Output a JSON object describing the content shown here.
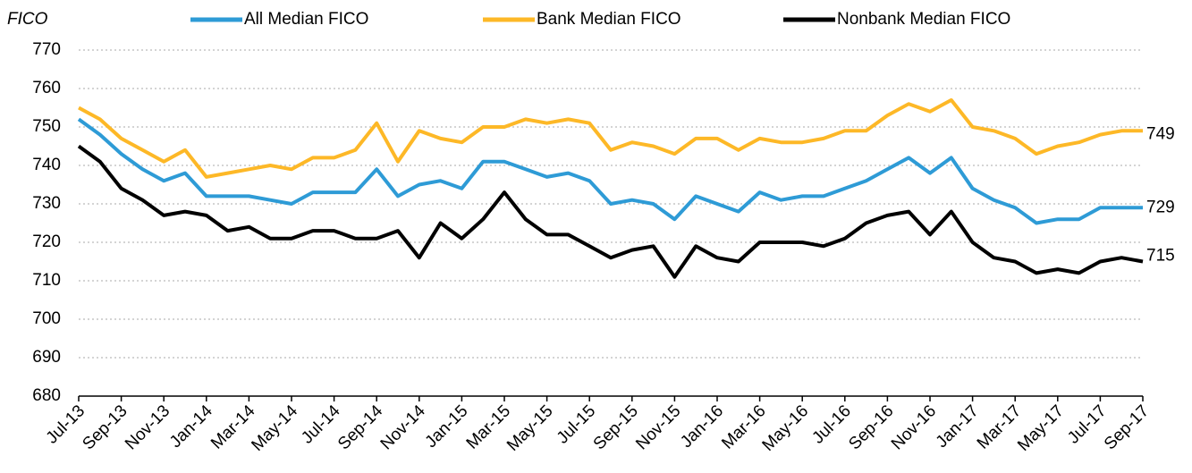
{
  "chart_data": {
    "type": "line",
    "y_label": "FICO",
    "categories": [
      "Jul-13",
      null,
      "Sep-13",
      null,
      "Nov-13",
      null,
      "Jan-14",
      null,
      "Mar-14",
      null,
      "May-14",
      null,
      "Jul-14",
      null,
      "Sep-14",
      null,
      "Nov-14",
      null,
      "Jan-15",
      null,
      "Mar-15",
      null,
      "May-15",
      null,
      "Jul-15",
      null,
      "Sep-15",
      null,
      "Nov-15",
      null,
      "Jan-16",
      null,
      "Mar-16",
      null,
      "May-16",
      null,
      "Jul-16",
      null,
      "Sep-16",
      null,
      "Nov-16",
      null,
      "Jan-17",
      null,
      "Mar-17",
      null,
      "May-17",
      null,
      "Jul-17",
      null,
      "Sep-17"
    ],
    "series": [
      {
        "name": "All Median FICO",
        "color": "#2e9bd6",
        "values": [
          752,
          748,
          743,
          739,
          736,
          738,
          732,
          732,
          732,
          731,
          730,
          733,
          733,
          733,
          739,
          732,
          735,
          736,
          734,
          741,
          741,
          739,
          737,
          738,
          736,
          730,
          731,
          730,
          726,
          732,
          730,
          728,
          733,
          731,
          732,
          732,
          734,
          736,
          739,
          742,
          738,
          742,
          734,
          731,
          729,
          725,
          726,
          726,
          729,
          729,
          729
        ]
      },
      {
        "name": "Bank Median FICO",
        "color": "#fdb827",
        "values": [
          755,
          752,
          747,
          744,
          741,
          744,
          737,
          738,
          739,
          740,
          739,
          742,
          742,
          744,
          751,
          741,
          749,
          747,
          746,
          750,
          750,
          752,
          751,
          752,
          751,
          744,
          746,
          745,
          743,
          747,
          747,
          744,
          747,
          746,
          746,
          747,
          749,
          749,
          753,
          756,
          754,
          757,
          750,
          749,
          747,
          743,
          745,
          746,
          748,
          749,
          749
        ]
      },
      {
        "name": "Nonbank Median FICO",
        "color": "#000000",
        "values": [
          745,
          741,
          734,
          731,
          727,
          728,
          727,
          723,
          724,
          721,
          721,
          723,
          723,
          721,
          721,
          723,
          716,
          725,
          721,
          726,
          733,
          726,
          722,
          722,
          719,
          716,
          718,
          719,
          711,
          719,
          716,
          715,
          720,
          720,
          720,
          719,
          721,
          725,
          727,
          728,
          722,
          728,
          720,
          716,
          715,
          712,
          713,
          712,
          715,
          716,
          715
        ]
      }
    ],
    "ylim": [
      680,
      770
    ],
    "yticks": [
      680,
      690,
      700,
      710,
      720,
      730,
      740,
      750,
      760,
      770
    ],
    "grid": true,
    "legend": "top"
  }
}
